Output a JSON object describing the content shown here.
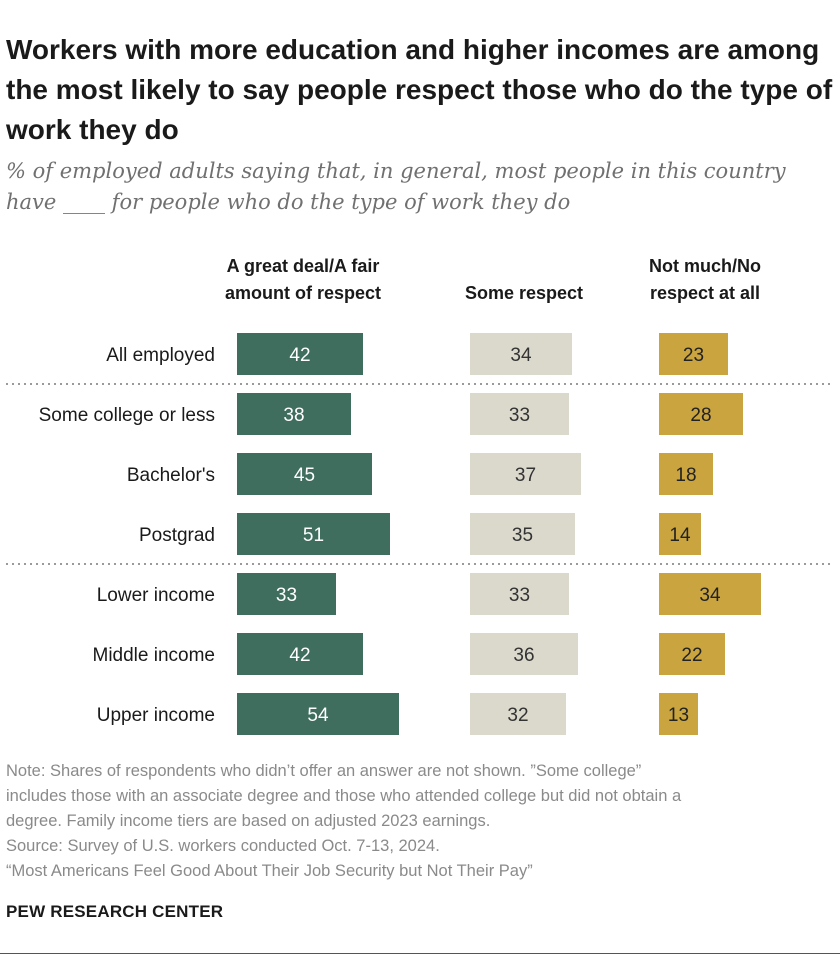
{
  "chart_data": {
    "type": "bar",
    "title": "Workers with more education and higher incomes are among the most likely to say people respect those who do the type of work they do",
    "subtitle_lines": [
      "% of employed adults saying that, in general, most people in this country",
      "have ____ for people who do the type of work they do"
    ],
    "categories": [
      "All employed",
      "Some college or less",
      "Bachelor's",
      "Postgrad",
      "Lower income",
      "Middle income",
      "Upper income"
    ],
    "groups": [
      [
        "All employed"
      ],
      [
        "Some college or less",
        "Bachelor's",
        "Postgrad"
      ],
      [
        "Lower income",
        "Middle income",
        "Upper income"
      ]
    ],
    "series": [
      {
        "name": "A great deal/A fair amount of respect",
        "header_lines": [
          "A great deal/A fair",
          "amount of respect"
        ],
        "color": "#3f6e5f",
        "label_color": "#ffffff",
        "values": [
          42,
          38,
          45,
          51,
          33,
          42,
          54
        ]
      },
      {
        "name": "Some respect",
        "header_lines": [
          "Some respect"
        ],
        "color": "#dbd8cc",
        "label_color": "#333333",
        "values": [
          34,
          33,
          37,
          35,
          33,
          36,
          32
        ]
      },
      {
        "name": "Not much/No respect at all",
        "header_lines": [
          "Not much/No",
          "respect at all"
        ],
        "color": "#c9a43f",
        "label_color": "#222222",
        "values": [
          23,
          28,
          18,
          14,
          34,
          22,
          13
        ]
      }
    ],
    "xlim": [
      0,
      100
    ]
  },
  "notes": [
    "Note: Shares of respondents who didn’t offer an answer are not shown. ”Some college”",
    "includes those with an associate degree and those who attended college but did not obtain a",
    "degree. Family income tiers are based on adjusted 2023 earnings.",
    "Source: Survey of U.S. workers conducted Oct. 7-13, 2024.",
    "“Most Americans Feel Good About Their Job Security but Not Their Pay”"
  ],
  "brand": "PEW RESEARCH CENTER",
  "colors": {
    "divider": "#9a9a9a",
    "text": "#1a1a1a"
  }
}
